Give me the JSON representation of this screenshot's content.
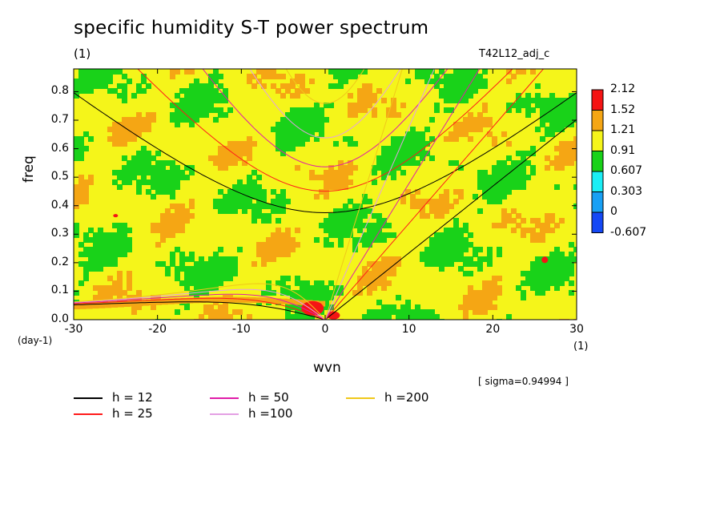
{
  "title": "specific humidity S-T power spectrum",
  "units": "(1)",
  "run_id": "T42L12_adj_c",
  "sigma_note": "[ sigma=0.94994 ]",
  "colors": {
    "green": "#19d219",
    "yellow": "#f5f51a",
    "orange": "#f5a614",
    "red": "#f51414",
    "cyan": "#1aeef5",
    "lightblue": "#18a0f5",
    "blue": "#1448f5",
    "h12": "#000000",
    "h25": "#ff1a1a",
    "h50": "#e01ca8",
    "h100": "#e4a0e4",
    "h200": "#f0c81a"
  },
  "chart_data": {
    "type": "heatmap",
    "title": "specific humidity S-T power spectrum",
    "subtitle": "T42L12_adj_c",
    "xlabel": "wvn",
    "ylabel": "freq",
    "x_unit": "(1)",
    "y_unit": "(day-1)",
    "xlim": [
      -30,
      30
    ],
    "ylim": [
      0,
      0.88
    ],
    "x_ticks": [
      -30,
      -20,
      -10,
      0,
      10,
      20,
      30
    ],
    "y_ticks": [
      0.0,
      0.1,
      0.2,
      0.3,
      0.4,
      0.5,
      0.6,
      0.7,
      0.8
    ],
    "x_tick_labels": [
      "-30",
      "-20",
      "-10",
      "0",
      "10",
      "20",
      "30"
    ],
    "y_tick_labels": [
      "0.0",
      "0.1",
      "0.2",
      "0.3",
      "0.4",
      "0.5",
      "0.6",
      "0.7",
      "0.8"
    ],
    "colorbar": {
      "levels": [
        "2.12",
        "1.52",
        "1.21",
        "0.91",
        "0.607",
        "0.303",
        "0",
        "-0.607"
      ],
      "colors": [
        "red",
        "orange",
        "yellow",
        "green",
        "cyan",
        "lightblue",
        "blue"
      ]
    },
    "dispersion_curves": [
      {
        "label": "h = 12",
        "color": "h12",
        "legend_col": 0,
        "legend_row": 0
      },
      {
        "label": "h = 25",
        "color": "h25",
        "legend_col": 0,
        "legend_row": 1
      },
      {
        "label": "h = 50",
        "color": "h50",
        "legend_col": 1,
        "legend_row": 0
      },
      {
        "label": "h =100",
        "color": "h100",
        "legend_col": 1,
        "legend_row": 1
      },
      {
        "label": "h =200",
        "color": "h200",
        "legend_col": 2,
        "legend_row": 0
      }
    ],
    "annotation": "[ sigma=0.94994 ]"
  }
}
